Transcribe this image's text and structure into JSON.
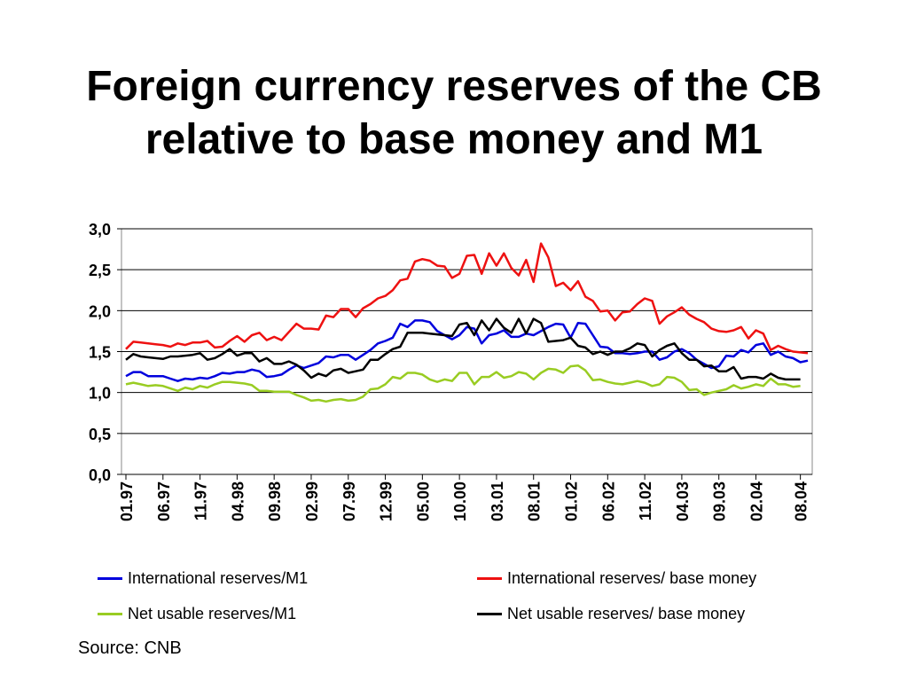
{
  "slide": {
    "title_line1": "Foreign currency reserves of the CB",
    "title_line2": "relative to base money and M1",
    "source": "Source: CNB"
  },
  "colors": {
    "blue": "#0000dd",
    "red": "#ee1111",
    "green": "#99cc22",
    "black": "#000000"
  },
  "chart_data": {
    "type": "line",
    "title": "",
    "xlabel": "",
    "ylabel": "",
    "ylim": [
      0,
      3
    ],
    "y_ticks": [
      "0,0",
      "0,5",
      "1,0",
      "1,5",
      "2,0",
      "2,5",
      "3,0"
    ],
    "x_tick_labels": [
      "01.97",
      "06.97",
      "11.97",
      "04.98",
      "09.98",
      "02.99",
      "07.99",
      "12.99",
      "05.00",
      "10.00",
      "03.01",
      "08.01",
      "01.02",
      "06.02",
      "11.02",
      "04.03",
      "09.03",
      "02.04",
      "08.04"
    ],
    "x_tick_index": [
      0,
      5,
      10,
      15,
      20,
      25,
      30,
      35,
      40,
      45,
      50,
      55,
      60,
      65,
      70,
      75,
      80,
      85,
      91
    ],
    "grid": "horizontal",
    "legend_position": "bottom",
    "series": [
      {
        "name": "International reserves/M1",
        "color": "#0000dd",
        "values": [
          1.2,
          1.25,
          1.25,
          1.2,
          1.2,
          1.2,
          1.17,
          1.14,
          1.17,
          1.16,
          1.18,
          1.17,
          1.2,
          1.24,
          1.23,
          1.25,
          1.25,
          1.28,
          1.26,
          1.19,
          1.2,
          1.22,
          1.28,
          1.33,
          1.3,
          1.33,
          1.36,
          1.44,
          1.43,
          1.46,
          1.46,
          1.4,
          1.46,
          1.52,
          1.6,
          1.63,
          1.67,
          1.84,
          1.8,
          1.88,
          1.88,
          1.86,
          1.75,
          1.7,
          1.65,
          1.7,
          1.8,
          1.78,
          1.6,
          1.7,
          1.72,
          1.76,
          1.68,
          1.68,
          1.72,
          1.7,
          1.75,
          1.8,
          1.84,
          1.83,
          1.67,
          1.85,
          1.84,
          1.7,
          1.56,
          1.55,
          1.48,
          1.48,
          1.47,
          1.48,
          1.5,
          1.5,
          1.4,
          1.43,
          1.5,
          1.53,
          1.48,
          1.4,
          1.35,
          1.3,
          1.32,
          1.45,
          1.44,
          1.52,
          1.49,
          1.58,
          1.6,
          1.46,
          1.5,
          1.44,
          1.42,
          1.37,
          1.39
        ]
      },
      {
        "name": "International reserves/ base money",
        "color": "#ee1111",
        "values": [
          1.53,
          1.62,
          1.61,
          1.6,
          1.59,
          1.58,
          1.56,
          1.6,
          1.58,
          1.61,
          1.61,
          1.63,
          1.55,
          1.56,
          1.63,
          1.69,
          1.62,
          1.7,
          1.73,
          1.64,
          1.68,
          1.64,
          1.74,
          1.84,
          1.78,
          1.78,
          1.77,
          1.94,
          1.92,
          2.02,
          2.02,
          1.92,
          2.03,
          2.08,
          2.15,
          2.18,
          2.25,
          2.37,
          2.39,
          2.6,
          2.63,
          2.61,
          2.55,
          2.54,
          2.4,
          2.45,
          2.67,
          2.68,
          2.45,
          2.7,
          2.55,
          2.7,
          2.52,
          2.43,
          2.62,
          2.35,
          2.82,
          2.65,
          2.3,
          2.34,
          2.25,
          2.36,
          2.17,
          2.12,
          1.99,
          2.0,
          1.88,
          1.98,
          1.99,
          2.08,
          2.15,
          2.12,
          1.84,
          1.93,
          1.98,
          2.04,
          1.95,
          1.9,
          1.86,
          1.78,
          1.75,
          1.74,
          1.76,
          1.8,
          1.66,
          1.76,
          1.72,
          1.52,
          1.57,
          1.53,
          1.5,
          1.49,
          1.48
        ]
      },
      {
        "name": "Net usable reserves/M1",
        "color": "#99cc22",
        "values": [
          1.1,
          1.12,
          1.1,
          1.08,
          1.09,
          1.08,
          1.05,
          1.02,
          1.06,
          1.04,
          1.08,
          1.06,
          1.1,
          1.13,
          1.13,
          1.12,
          1.11,
          1.09,
          1.02,
          1.02,
          1.01,
          1.01,
          1.01,
          0.97,
          0.94,
          0.9,
          0.91,
          0.89,
          0.91,
          0.92,
          0.9,
          0.91,
          0.95,
          1.04,
          1.05,
          1.1,
          1.19,
          1.17,
          1.24,
          1.24,
          1.22,
          1.16,
          1.13,
          1.16,
          1.14,
          1.24,
          1.24,
          1.1,
          1.19,
          1.19,
          1.25,
          1.18,
          1.2,
          1.25,
          1.23,
          1.16,
          1.24,
          1.29,
          1.28,
          1.24,
          1.32,
          1.33,
          1.27,
          1.15,
          1.16,
          1.13,
          1.11,
          1.1,
          1.12,
          1.14,
          1.12,
          1.08,
          1.1,
          1.19,
          1.18,
          1.13,
          1.03,
          1.04,
          0.97,
          1.0,
          1.02,
          1.04,
          1.09,
          1.05,
          1.07,
          1.1,
          1.08,
          1.17,
          1.1,
          1.1,
          1.07,
          1.08
        ]
      },
      {
        "name": "Net usable reserves/ base money",
        "color": "#000000",
        "values": [
          1.4,
          1.47,
          1.44,
          1.43,
          1.42,
          1.41,
          1.44,
          1.44,
          1.45,
          1.46,
          1.48,
          1.4,
          1.42,
          1.47,
          1.53,
          1.45,
          1.48,
          1.48,
          1.38,
          1.42,
          1.35,
          1.35,
          1.38,
          1.34,
          1.27,
          1.18,
          1.23,
          1.2,
          1.27,
          1.29,
          1.24,
          1.26,
          1.28,
          1.4,
          1.4,
          1.47,
          1.53,
          1.56,
          1.73,
          1.73,
          1.73,
          1.72,
          1.71,
          1.7,
          1.69,
          1.83,
          1.85,
          1.7,
          1.88,
          1.76,
          1.9,
          1.79,
          1.73,
          1.9,
          1.72,
          1.9,
          1.85,
          1.62,
          1.63,
          1.64,
          1.67,
          1.57,
          1.55,
          1.47,
          1.5,
          1.46,
          1.5,
          1.5,
          1.54,
          1.6,
          1.58,
          1.44,
          1.52,
          1.57,
          1.6,
          1.48,
          1.4,
          1.4,
          1.32,
          1.33,
          1.26,
          1.26,
          1.31,
          1.17,
          1.19,
          1.19,
          1.17,
          1.23,
          1.18,
          1.16,
          1.16,
          1.16
        ]
      }
    ]
  }
}
